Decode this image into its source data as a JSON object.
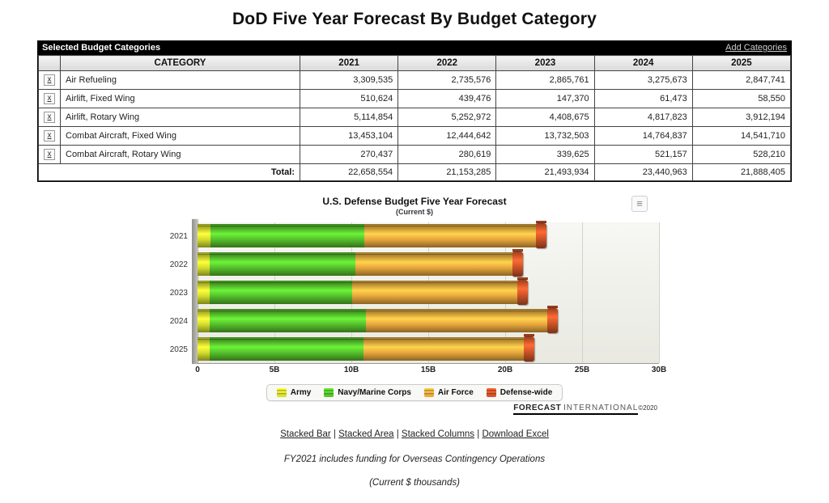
{
  "page": {
    "title": "DoD Five Year Forecast By Budget Category",
    "footnote_oco": "FY2021 includes funding for Overseas Contingency Operations",
    "footnote_units": "(Current $ thousands)"
  },
  "table": {
    "band_title": "Selected Budget Categories",
    "add_link": "Add Categories",
    "remove_label": "x",
    "columns": [
      "CATEGORY",
      "2021",
      "2022",
      "2023",
      "2024",
      "2025"
    ],
    "rows": [
      {
        "category": "Air Refueling",
        "values": [
          "3,309,535",
          "2,735,576",
          "2,865,761",
          "3,275,673",
          "2,847,741"
        ]
      },
      {
        "category": "Airlift, Fixed Wing",
        "values": [
          "510,624",
          "439,476",
          "147,370",
          "61,473",
          "58,550"
        ]
      },
      {
        "category": "Airlift, Rotary Wing",
        "values": [
          "5,114,854",
          "5,252,972",
          "4,408,675",
          "4,817,823",
          "3,912,194"
        ]
      },
      {
        "category": "Combat Aircraft, Fixed Wing",
        "values": [
          "13,453,104",
          "12,444,642",
          "13,732,503",
          "14,764,837",
          "14,541,710"
        ]
      },
      {
        "category": "Combat Aircraft, Rotary Wing",
        "values": [
          "270,437",
          "280,619",
          "339,625",
          "521,157",
          "528,210"
        ]
      }
    ],
    "total_label": "Total:",
    "totals": [
      "22,658,554",
      "21,153,285",
      "21,493,934",
      "23,440,963",
      "21,888,405"
    ]
  },
  "chart_data": {
    "type": "bar",
    "stacked": true,
    "orientation": "horizontal",
    "title": "U.S. Defense Budget Five Year Forecast",
    "subtitle": "(Current $)",
    "categories": [
      "2021",
      "2022",
      "2023",
      "2024",
      "2025"
    ],
    "series": [
      {
        "name": "Army",
        "color": "#d3dd2e",
        "values_billions": [
          0.82,
          0.77,
          0.77,
          0.77,
          0.77
        ]
      },
      {
        "name": "Navy/Marine Corps",
        "color": "#55bf2c",
        "values_billions": [
          10.0,
          9.5,
          9.3,
          10.2,
          10.0
        ]
      },
      {
        "name": "Air Force",
        "color": "#e8a63c",
        "values_billions": [
          11.18,
          10.2,
          10.72,
          11.77,
          10.42
        ]
      },
      {
        "name": "Defense-wide",
        "color": "#cc5328",
        "values_billions": [
          0.66,
          0.68,
          0.7,
          0.7,
          0.7
        ]
      }
    ],
    "totals_billions": [
      22.66,
      21.15,
      21.49,
      23.44,
      21.89
    ],
    "x_ticks": [
      "0",
      "5B",
      "10B",
      "15B",
      "20B",
      "25B",
      "30B"
    ],
    "xlim_billions": [
      0,
      30
    ],
    "grid": true,
    "legend_position": "bottom",
    "menu_icon": "≡",
    "watermark": {
      "bold": "FORECAST",
      "rest": "INTERNATIONAL",
      "copy": "©2020"
    }
  },
  "links": {
    "items": [
      "Stacked Bar",
      "Stacked Area",
      "Stacked Columns",
      "Download Excel"
    ],
    "separator": " | "
  }
}
